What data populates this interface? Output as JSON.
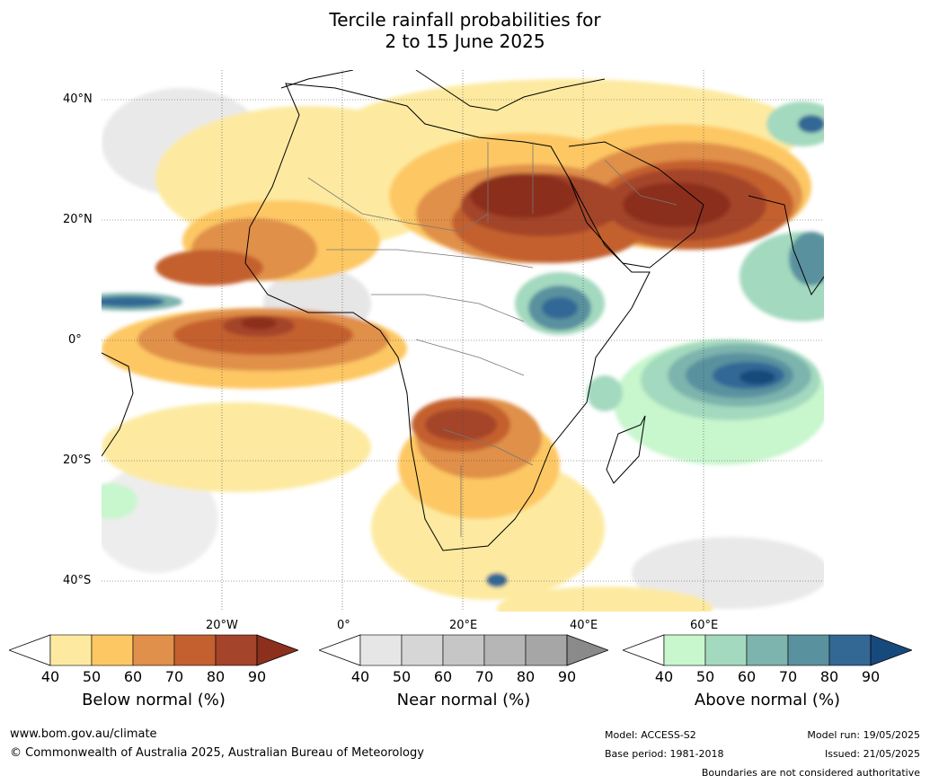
{
  "title": {
    "line1": "Tercile rainfall probabilities for",
    "line2": "2 to 15 June 2025"
  },
  "map": {
    "lat_labels": [
      "40°N",
      "20°N",
      "0°",
      "20°S",
      "40°S"
    ],
    "lon_labels": [
      "20°W",
      "0°",
      "20°E",
      "40°E",
      "60°E"
    ]
  },
  "legends": [
    {
      "title": "Below normal (%)",
      "ticks": [
        "40",
        "50",
        "60",
        "70",
        "80",
        "90"
      ],
      "colors": [
        "#fdeaa0",
        "#fdc864",
        "#e0904a",
        "#c4602f",
        "#a4442a",
        "#8c2f1d"
      ]
    },
    {
      "title": "Near normal (%)",
      "ticks": [
        "40",
        "50",
        "60",
        "70",
        "80",
        "90"
      ],
      "colors": [
        "#e6e6e6",
        "#d6d6d6",
        "#c6c6c6",
        "#b6b6b6",
        "#a6a6a6",
        "#8a8a8a"
      ]
    },
    {
      "title": "Above normal (%)",
      "ticks": [
        "40",
        "50",
        "60",
        "70",
        "80",
        "90"
      ],
      "colors": [
        "#c8f6cd",
        "#a3d9be",
        "#7db4ad",
        "#5a919f",
        "#336895",
        "#174a7c"
      ]
    }
  ],
  "footer": {
    "website": "www.bom.gov.au/climate",
    "copyright": "© Commonwealth of Australia 2025, Australian Bureau of Meteorology",
    "model": "Model: ACCESS-S2",
    "base_period": "Base period: 1981-2018",
    "model_run": "Model run: 19/05/2025",
    "issued": "Issued: 21/05/2025",
    "disclaimer": "Boundaries are not considered authoritative"
  }
}
